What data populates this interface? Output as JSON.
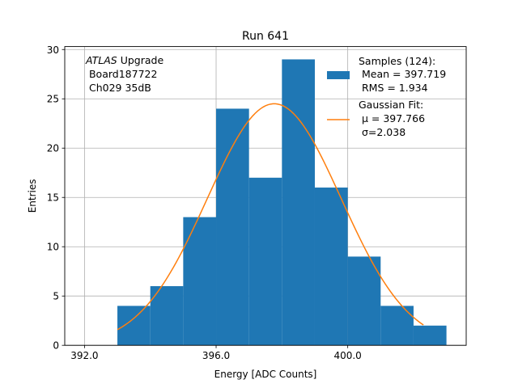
{
  "chart_data": {
    "type": "histogram",
    "title": "Run 641",
    "xlabel": "Energy [ADC Counts]",
    "ylabel": "Entries",
    "xlim": [
      391.4,
      403.6
    ],
    "ylim": [
      0,
      30.3
    ],
    "grid": true,
    "xticks": [
      392,
      396,
      400
    ],
    "xtick_labels": [
      "392.0",
      "396.0",
      "400.0"
    ],
    "yticks": [
      0,
      5,
      10,
      15,
      20,
      25,
      30
    ],
    "ytick_labels": [
      "0",
      "5",
      "10",
      "15",
      "20",
      "25",
      "30"
    ],
    "bins": [
      {
        "x0": 393.0,
        "x1": 394.0,
        "count": 4
      },
      {
        "x0": 394.0,
        "x1": 395.0,
        "count": 6
      },
      {
        "x0": 395.0,
        "x1": 396.0,
        "count": 13
      },
      {
        "x0": 396.0,
        "x1": 397.0,
        "count": 24
      },
      {
        "x0": 397.0,
        "x1": 398.0,
        "count": 17
      },
      {
        "x0": 398.0,
        "x1": 399.0,
        "count": 29
      },
      {
        "x0": 399.0,
        "x1": 400.0,
        "count": 16
      },
      {
        "x0": 400.0,
        "x1": 401.0,
        "count": 9
      },
      {
        "x0": 401.0,
        "x1": 402.0,
        "count": 4
      },
      {
        "x0": 402.0,
        "x1": 403.0,
        "count": 2
      }
    ],
    "fit": {
      "type": "gaussian",
      "mu": 397.766,
      "sigma": 2.038,
      "amplitude": 24.5,
      "x_range": [
        393.0,
        402.3
      ]
    },
    "colors": {
      "bars": "#1f77b4",
      "fit": "#ff7f0e",
      "grid": "#b0b0b0"
    },
    "annotation": {
      "line1_italic": "ATLAS",
      "line1_rest": " Upgrade",
      "line2": " Board187722",
      "line3": " Ch029 35dB"
    },
    "legend": {
      "position": "top-right",
      "samples_line1": "Samples (124):",
      "samples_line2": " Mean = 397.719",
      "samples_line3": " RMS = 1.934",
      "fit_line1": "Gaussian Fit:",
      "fit_line2": " μ = 397.766",
      "fit_line3": " σ=2.038"
    }
  }
}
